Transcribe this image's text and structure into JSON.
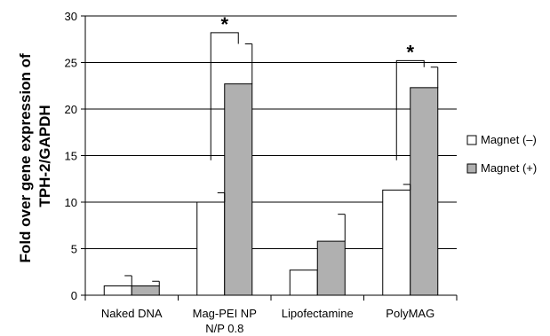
{
  "chart_data": {
    "type": "bar",
    "title": "",
    "xlabel": "",
    "ylabel_lines": [
      "Fold over gene expression of",
      "TPH-2/GAPDH"
    ],
    "ylim": [
      0,
      30
    ],
    "yticks": [
      "0",
      "5",
      "10",
      "15",
      "20",
      "25",
      "30"
    ],
    "categories": [
      {
        "lines": [
          "Naked DNA"
        ]
      },
      {
        "lines": [
          "Mag-PEI NP",
          "N/P 0.8"
        ]
      },
      {
        "lines": [
          "Lipofectamine"
        ]
      },
      {
        "lines": [
          "PolyMAG"
        ]
      }
    ],
    "series": [
      {
        "name": "Magnet (–)",
        "color": "#ffffff",
        "values": [
          1.0,
          10.0,
          2.7,
          11.3
        ],
        "errors": [
          1.1,
          1.0,
          0,
          0.6
        ]
      },
      {
        "name": "Magnet (+)",
        "color": "#b0b0b0",
        "values": [
          1.0,
          22.7,
          5.8,
          22.3
        ],
        "errors": [
          0.5,
          4.3,
          2.9,
          2.2
        ]
      }
    ],
    "grid": true,
    "legend_position": "right",
    "significance": [
      {
        "category_index": 1,
        "label": "*",
        "top": 28.2,
        "left_end": 14.5,
        "right_end": 27.0
      },
      {
        "category_index": 3,
        "label": "*",
        "top": 25.2,
        "left_end": 14.5,
        "right_end": 24.5
      }
    ]
  }
}
